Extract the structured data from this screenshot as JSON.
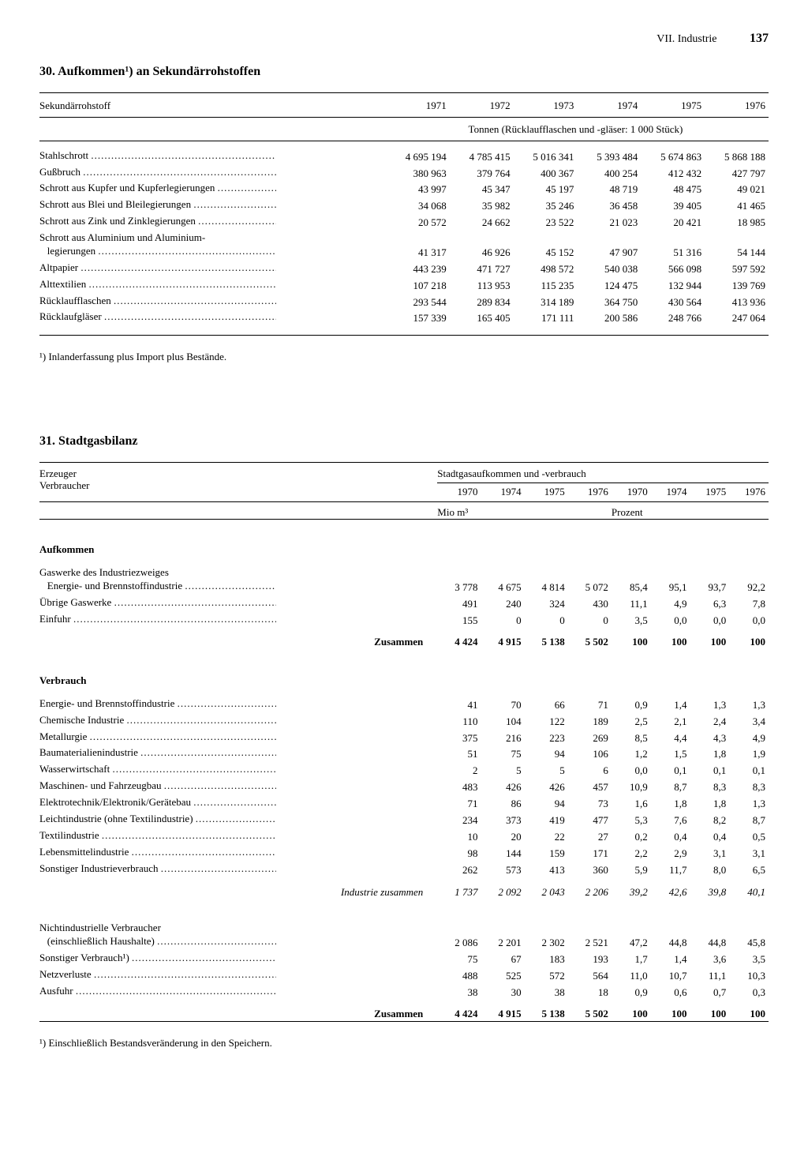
{
  "header": {
    "section": "VII. Industrie",
    "page": "137"
  },
  "table30": {
    "title": "30. Aufkommen¹) an Sekundärrohstoffen",
    "col_label": "Sekundärrohstoff",
    "years": [
      "1971",
      "1972",
      "1973",
      "1974",
      "1975",
      "1976"
    ],
    "unit_line": "Tonnen (Rücklaufflaschen und -gläser: 1 000 Stück)",
    "rows": [
      {
        "label": "Stahlschrott",
        "v": [
          "4 695 194",
          "4 785 415",
          "5 016 341",
          "5 393 484",
          "5 674 863",
          "5 868 188"
        ]
      },
      {
        "label": "Gußbruch",
        "v": [
          "380 963",
          "379 764",
          "400 367",
          "400 254",
          "412 432",
          "427 797"
        ]
      },
      {
        "label": "Schrott aus Kupfer und Kupferlegierungen",
        "v": [
          "43 997",
          "45 347",
          "45 197",
          "48 719",
          "48 475",
          "49 021"
        ]
      },
      {
        "label": "Schrott aus Blei und Bleilegierungen",
        "v": [
          "34 068",
          "35 982",
          "35 246",
          "36 458",
          "39 405",
          "41 465"
        ]
      },
      {
        "label": "Schrott aus Zink und Zinklegierungen",
        "v": [
          "20 572",
          "24 662",
          "23 522",
          "21 023",
          "20 421",
          "18 985"
        ]
      },
      {
        "label": "Schrott aus Aluminium und Aluminium-",
        "label2": "legierungen",
        "v": [
          "41 317",
          "46 926",
          "45 152",
          "47 907",
          "51 316",
          "54 144"
        ]
      },
      {
        "label": "Altpapier",
        "v": [
          "443 239",
          "471 727",
          "498 572",
          "540 038",
          "566 098",
          "597 592"
        ]
      },
      {
        "label": "Alttextilien",
        "v": [
          "107 218",
          "113 953",
          "115 235",
          "124 475",
          "132 944",
          "139 769"
        ]
      },
      {
        "label": "Rücklaufflaschen",
        "v": [
          "293 544",
          "289 834",
          "314 189",
          "364 750",
          "430 564",
          "413 936"
        ]
      },
      {
        "label": "Rücklaufgläser",
        "v": [
          "157 339",
          "165 405",
          "171 111",
          "200 586",
          "248 766",
          "247 064"
        ]
      }
    ],
    "footnote": "¹) Inlanderfassung plus Import plus Bestände."
  },
  "table31": {
    "title": "31. Stadtgasbilanz",
    "col_label_top": "Erzeuger",
    "col_label_bottom": "Verbraucher",
    "spanner": "Stadtgasaufkommen und -verbrauch",
    "years_mio": [
      "1970",
      "1974",
      "1975",
      "1976"
    ],
    "years_pct": [
      "1970",
      "1974",
      "1975",
      "1976"
    ],
    "unit_mio": "Mio m³",
    "unit_pct": "Prozent",
    "aufkommen_label": "Aufkommen",
    "aufkommen_rows": [
      {
        "label": "Gaswerke des Industriezweiges",
        "label2": "Energie- und Brennstoffindustrie",
        "v": [
          "3 778",
          "4 675",
          "4 814",
          "5 072",
          "85,4",
          "95,1",
          "93,7",
          "92,2"
        ]
      },
      {
        "label": "Übrige Gaswerke",
        "v": [
          "491",
          "240",
          "324",
          "430",
          "11,1",
          "4,9",
          "6,3",
          "7,8"
        ]
      },
      {
        "label": "Einfuhr",
        "v": [
          "155",
          "0",
          "0",
          "0",
          "3,5",
          "0,0",
          "0,0",
          "0,0"
        ]
      }
    ],
    "aufkommen_total": {
      "label": "Zusammen",
      "v": [
        "4 424",
        "4 915",
        "5 138",
        "5 502",
        "100",
        "100",
        "100",
        "100"
      ]
    },
    "verbrauch_label": "Verbrauch",
    "verbrauch_rows": [
      {
        "label": "Energie- und Brennstoffindustrie",
        "v": [
          "41",
          "70",
          "66",
          "71",
          "0,9",
          "1,4",
          "1,3",
          "1,3"
        ]
      },
      {
        "label": "Chemische Industrie",
        "v": [
          "110",
          "104",
          "122",
          "189",
          "2,5",
          "2,1",
          "2,4",
          "3,4"
        ]
      },
      {
        "label": "Metallurgie",
        "v": [
          "375",
          "216",
          "223",
          "269",
          "8,5",
          "4,4",
          "4,3",
          "4,9"
        ]
      },
      {
        "label": "Baumaterialienindustrie",
        "v": [
          "51",
          "75",
          "94",
          "106",
          "1,2",
          "1,5",
          "1,8",
          "1,9"
        ]
      },
      {
        "label": "Wasserwirtschaft",
        "v": [
          "2",
          "5",
          "5",
          "6",
          "0,0",
          "0,1",
          "0,1",
          "0,1"
        ]
      },
      {
        "label": "Maschinen- und Fahrzeugbau",
        "v": [
          "483",
          "426",
          "426",
          "457",
          "10,9",
          "8,7",
          "8,3",
          "8,3"
        ]
      },
      {
        "label": "Elektrotechnik/Elektronik/Gerätebau",
        "v": [
          "71",
          "86",
          "94",
          "73",
          "1,6",
          "1,8",
          "1,8",
          "1,3"
        ]
      },
      {
        "label": "Leichtindustrie (ohne Textilindustrie)",
        "v": [
          "234",
          "373",
          "419",
          "477",
          "5,3",
          "7,6",
          "8,2",
          "8,7"
        ]
      },
      {
        "label": "Textilindustrie",
        "v": [
          "10",
          "20",
          "22",
          "27",
          "0,2",
          "0,4",
          "0,4",
          "0,5"
        ]
      },
      {
        "label": "Lebensmittelindustrie",
        "v": [
          "98",
          "144",
          "159",
          "171",
          "2,2",
          "2,9",
          "3,1",
          "3,1"
        ]
      },
      {
        "label": "Sonstiger Industrieverbrauch",
        "v": [
          "262",
          "573",
          "413",
          "360",
          "5,9",
          "11,7",
          "8,0",
          "6,5"
        ]
      }
    ],
    "verbrauch_subtotal": {
      "label": "Industrie zusammen",
      "v": [
        "1 737",
        "2 092",
        "2 043",
        "2 206",
        "39,2",
        "42,6",
        "39,8",
        "40,1"
      ]
    },
    "other_rows": [
      {
        "label": "Nichtindustrielle Verbraucher",
        "label2": "(einschließlich Haushalte)",
        "v": [
          "2 086",
          "2 201",
          "2 302",
          "2 521",
          "47,2",
          "44,8",
          "44,8",
          "45,8"
        ]
      },
      {
        "label": "Sonstiger Verbrauch¹)",
        "v": [
          "75",
          "67",
          "183",
          "193",
          "1,7",
          "1,4",
          "3,6",
          "3,5"
        ]
      },
      {
        "label": "Netzverluste",
        "v": [
          "488",
          "525",
          "572",
          "564",
          "11,0",
          "10,7",
          "11,1",
          "10,3"
        ]
      },
      {
        "label": "Ausfuhr",
        "v": [
          "38",
          "30",
          "38",
          "18",
          "0,9",
          "0,6",
          "0,7",
          "0,3"
        ]
      }
    ],
    "other_total": {
      "label": "Zusammen",
      "v": [
        "4 424",
        "4 915",
        "5 138",
        "5 502",
        "100",
        "100",
        "100",
        "100"
      ]
    },
    "footnote": "¹) Einschließlich Bestandsveränderung in den Speichern."
  }
}
